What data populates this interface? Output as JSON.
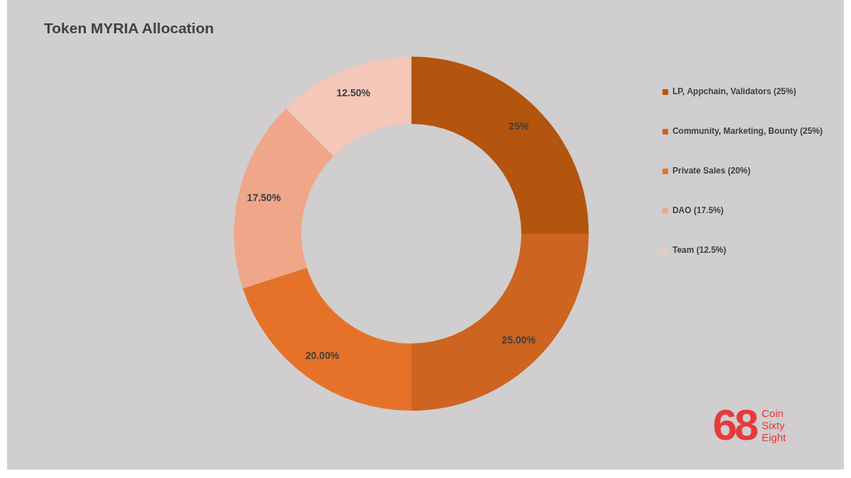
{
  "chart_data": {
    "type": "doughnut",
    "title": "Token MYRIA Allocation",
    "categories": [
      "LP, Appchain, Validators (25%)",
      "Community, Marketing, Bounty (25%)",
      "Private Sales (20%)",
      "DAO (17.5%)",
      "Team (12.5%)"
    ],
    "values": [
      25,
      25,
      20,
      17.5,
      12.5
    ],
    "value_labels": [
      "25%",
      "25.00%",
      "20.00%",
      "17.50%",
      "12.50%"
    ],
    "colors": [
      "#b3540f",
      "#cd6420",
      "#e6722a",
      "#efa689",
      "#f4c7b9"
    ],
    "legend": "right",
    "data_labels": true,
    "annotations": [
      "68",
      "Coin",
      "Sixty",
      "Eight"
    ]
  }
}
